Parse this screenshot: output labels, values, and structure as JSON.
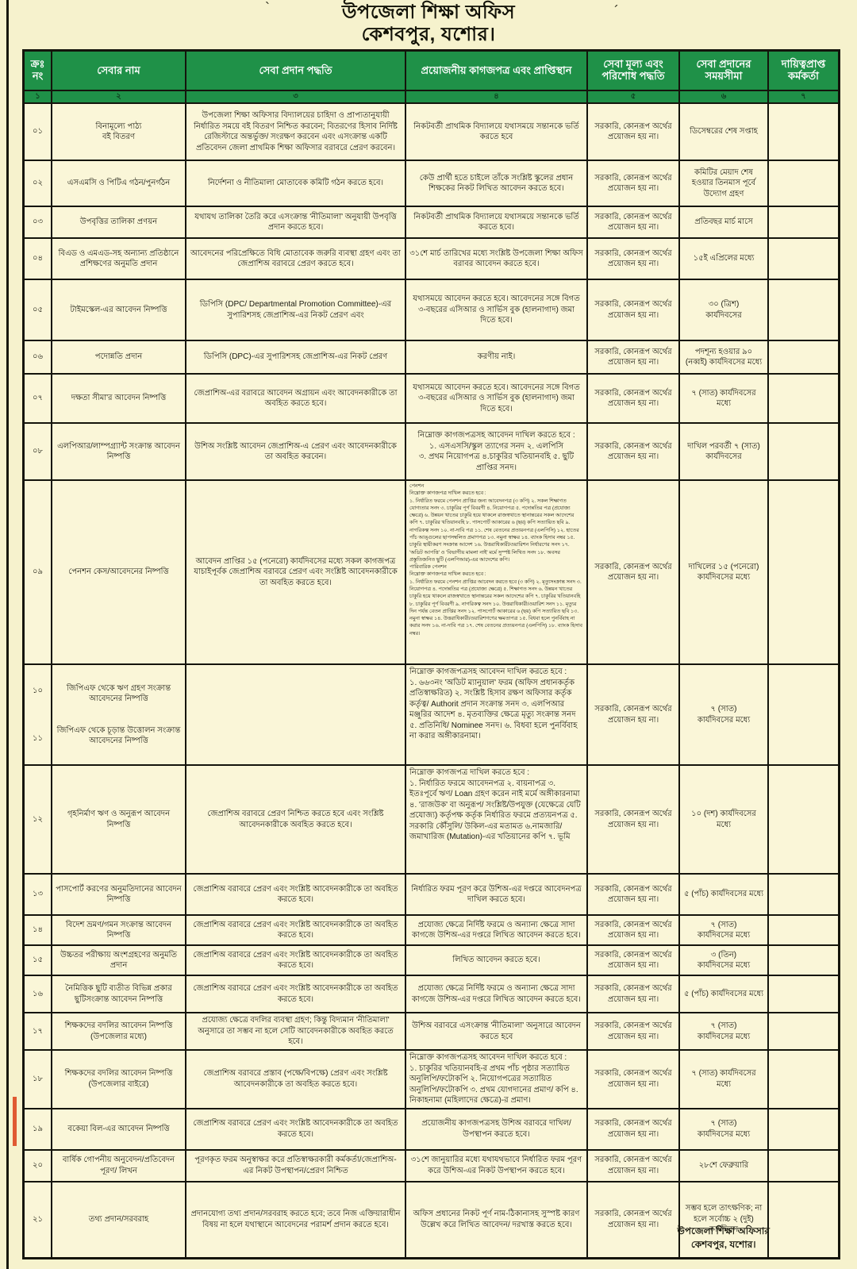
{
  "title": {
    "line1": "উপজেলা শিক্ষা অফিস",
    "line2": "কেশবপুর, যশোর।"
  },
  "decor": {
    "left_tick": "`",
    "right_tick": "´"
  },
  "colors": {
    "header_green": "#1f9148",
    "page_yellow": "#f6f2cd",
    "border_black": "#14140c",
    "accent_red": "#e05a33"
  },
  "footer": {
    "line1": "উপজেলা শিক্ষা অফিসার",
    "line2": "কেশবপুর, যশোর।"
  },
  "table": {
    "headers": [
      "ক্রঃ\nনং",
      "সেবার নাম",
      "সেবা প্রদান পদ্ধতি",
      "প্রয়োজনীয় কাগজপত্র এবং  প্রাপ্তিস্থান",
      "সেবা মূল্য এবং\nপরিশোধ পদ্ধতি",
      "সেবা প্রদানের\nসময়সীমা",
      "দায়িত্বপ্রাপ্ত\nকর্মকর্তা"
    ],
    "column_numbers": [
      "১",
      "২",
      "৩",
      "৪",
      "৫",
      "৬",
      "৭"
    ],
    "rows": [
      {
        "sl": "০১",
        "service": "বিনামূল্যে পাঠ্য\nবই বিতরণ",
        "method": "উপজেলা শিক্ষা অফিসার বিদ্যালয়ের চাহিদা ও প্রাপ্যতানুযায়ী নির্ধারিত সময়ে বই বিতরণ  নিশ্চিত করবেন; বিতরণের হিসাব নির্দিষ্ট রেজিস্টারে অন্তর্ভুক্ত/ সংরক্ষণ করবেন এবং এসংক্রান্ত একটি প্রতিবেদন জেলা প্রাথমিক শিক্ষা অফিসার বরাবরে প্রেরণ করবেন।",
        "documents": "নিকটবর্তী প্রাথমিক বিদ্যালয়ে যথাসময়ে সন্তানকে ভর্তি করতে হবে",
        "fee": "সরকারি, কোনরূপ অর্থের প্রয়োজন হয় না।",
        "time": "ডিসেম্বরের শেষ সপ্তাহ",
        "officer": ""
      },
      {
        "sl": "০২",
        "service": "এসএমসি ও পিটিএ গঠন/পুনর্গঠন",
        "method": "নির্দেশনা ও নীতিমালা মোতাবেক কমিটি গঠন করতে হবে।",
        "documents": "কেউ প্রার্থী হতে চাইলে তাঁকে সংশ্লিষ্ট স্কুলের প্রধান শিক্ষকের নিকট লিখিত আবেদন করতে হবে।",
        "fee": "সরকারি, কোনরূপ অর্থের প্রয়োজন হয় না।",
        "time": "কমিটির মেয়াদ শেষ হওয়ার তিনমাস পূর্বে উদ্যোগ গ্রহণ",
        "officer": ""
      },
      {
        "sl": "০৩",
        "service": "উপবৃত্তির তালিকা প্রণয়ন",
        "method": "যথাযথ তালিকা তৈরি করে এসংক্রান্ত 'নীতিমালা' অনুযায়ী উপবৃত্তি প্রদান করতে হবে।",
        "documents": "নিকটবর্তী প্রাথমিক বিদ্যালয়ে যথাসময়ে সন্তানকে ভর্তি করতে হবে।",
        "fee": "সরকারি, কোনরূপ অর্থের প্রয়োজন হয় না।",
        "time": "প্রতিবছর মার্চ মাসে",
        "officer": ""
      },
      {
        "sl": "০৪",
        "service": "বিএড ও এমএড-সহ অন্যান্য প্রতিষ্ঠানে প্রশিক্ষণের অনুমতি প্রদান",
        "method": "আবেদনের পরিপ্রেক্ষিতে বিধি মোতাবেক জরুরি ব্যবস্থা গ্রহণ এবং তা জেপ্রাশিঅ বরাবরে প্রেরণ করতে হবে।",
        "documents": "৩১শে মার্চ তারিখের মধ্যে সংশ্লিষ্ট উপজেলা শিক্ষা অফিস বরাবর আবেদন করতে হবে।",
        "fee": "সরকারি, কোনরূপ অর্থের প্রয়োজন হয় না।",
        "time": "১৫ই এপ্রিলের মধ্যে",
        "officer": ""
      },
      {
        "sl": "০৫",
        "service": "টাইমস্কেল-এর আবেদন নিষ্পত্তি",
        "method": "ডিপিসি (DPC/ Departmental Promotion Committee)-এর সুপারিশসহ জেপ্রাশিঅ-এর নিকট প্রেরণ এবং",
        "documents": "যথাসময়ে আবেদন করতে হবে। আবেদনের সঙ্গে বিগত ৩-বছরের এসিআর ও সার্ভিস বুক (হালনাগাদ) জমা দিতে হবে।",
        "fee": "সরকারি, কোনরূপ অর্থের প্রয়োজন হয় না।",
        "time": "৩০ (ত্রিশ)\nকার্যদিবসের",
        "officer": ""
      },
      {
        "sl": "০৬",
        "service": "পদোন্নতি প্রদান",
        "method": "ডিপিসি (DPC)-এর সুপারিশসহ জেপ্রাশিঅ-এর নিকট প্রেরণ",
        "documents": "করণীয় নাই।",
        "fee": "সরকারি, কোনরূপ অর্থের প্রয়োজন হয় না।",
        "time": "পদশূন্য হওয়ার ৯০ (নব্বই) কার্যদিবসের মধ্যে",
        "officer": ""
      },
      {
        "sl": "০৭",
        "service": "দক্ষতা সীমা'র আবেদন নিষ্পত্তি",
        "method": "জেপ্রাশিঅ-এর বরাবরে আবেদন অগ্রায়ন এবং আবেদনকারীকে তা অবহিত করতে হবে।",
        "documents": "যথাসময়ে আবেদন করতে হবে। আবেদনের সঙ্গে বিগত ৩-বছরের এসিআর ও সার্ভিস বুক (হালনাগাদ) জমা দিতে হবে।",
        "fee": "সরকারি, কোনরূপ অর্থের প্রয়োজন হয় না।",
        "time": "৭ (সাত) কার্যদিবসের মধ্যে",
        "officer": ""
      },
      {
        "sl": "০৮",
        "service": "এলপিআর/লাম্পগ্র্যান্ট সংক্রান্ত আবেদন নিষ্পত্তি",
        "method": "উশিঅ সংশ্লিষ্ট আবেদন জেপ্রাশিঅ-এ প্রেরণ এবং আবেদনকারীকে তা অবহিত করবেন।",
        "documents": "নিম্নোক্ত কাগজপত্রসহ আবেদন দাখিল করতে হবে :\n১. এসএসসি/স্কুল ত্যাগের সনদ ২. এলপিসি\n৩. প্রথম নিয়োগপত্র ৪.চাকুরির খতিয়ানবহি ৫. ছুটি প্রাপ্তির সনদ।",
        "fee": "সরকারি, কোনরূপ অর্থের প্রয়োজন হয় না।",
        "time": "দাখিল পরবর্তী ৭ (সাত) কার্যদিবসের",
        "officer": ""
      },
      {
        "sl": "০৯",
        "service": "পেনশন কেস/আবেদনের নিষ্পত্তি",
        "method": "আবেদন প্রাপ্তির ১৫ (পনেরো) কার্যদিবসের মধ্যে সকল কাগজপত্র যাচাইপূর্বক জেপ্রাশিঅ বরাবরে প্রেরণ এবং সংশ্লিষ্ট আবেদনকারীকে তা অবহিত করতে হবে।",
        "documents": "পেনশন\nনিম্নোক্ত কাগজপত্র দাখিল করতে হবে :\n১. নির্ধারিত ফরমে পেনশন প্রাপ্তির জন্য আবেদনপত্র (৩ কপি) ২. সকল শিক্ষাগত যোগ্যতার সনদ ৩. চাকুরির পূর্ণ বিবরণী ৪. নিয়োগপত্র ৫. পদোন্নতির পত্র (প্রযোজ্য ক্ষেত্রে) ৬. উন্নয়ন খাতের চাকুরি হয়ে থাকলে রাজস্বখাতে স্থানান্তরের সকল আদেশের কপি ৭. চাকুরির খতিয়ানবহি ৮. পাসপোর্ট আকারের ৬ (ছয়) কপি সত্যায়িত ছবি ৯. নাগরিকত্ব সনদ ১০. না-দাবি পত্র ১১. শেষ বেতনের প্রত্যয়নপত্র (এলপিসি) ১২. হাতের পাঁচ আঙ্গুলের ছাপসম্বলিত প্রমাণপত্র ১৩. নমুনা স্বাক্ষর ১৪. ব্যাংক হিসাব নম্বর ১৫. চাকুরি স্থায়ীকরণ সংক্রান্ত আদেশ ১৬. উত্তরাধিকারী/ওয়ারিশন নির্ধারণের সনদ ১৭. 'অডিট আপত্তি' ও 'বিভাগীয় মামলা নাই' মর্মে সুস্পষ্ট লিখিত সনদ ১৮. অবসর প্রস্তুতিজনিত ছুটি (এলপিআর)-এর আদেশের কপি।\nপারিবারিক পেনশন\nনিম্নোক্ত কাগজপত্র দাখিল করতে হবে :\n১. নির্ধারিত ফরমে পেনশন প্রাপ্তির আবেদন করতে হবে (৩ কপি) ২. মৃত্যুসংক্রান্ত সনদ ৩. নিয়োগপত্র ৪. পদোন্নতির পত্র (প্রযোজ্য ক্ষেত্রে) ৫. শিক্ষাগত সনদ ৬. উন্নয়ন খাতের চাকুরি হয়ে থাকলে রাজস্বখাতে স্থানান্তরের সকল আদেশের কপি ৭. চাকুরির খতিয়ানবহি ৮. চাকুরির পূর্ণ বিবরণী ৯. নাগরিকত্ব সনদ ১০. উত্তরাধিকারী/ওয়ারিশ সনদ ১১. মৃত্যুর দিন পর্যন্ত বেতন প্রাপ্তির সনদ ১২. পাসপোর্ট আকারের ৬ (ছয়) কপি সত্যায়িত ছবি ১৩. নমুনা স্বাক্ষর ১৪. উত্তরাধিকারী/ওয়ারিশগণের ক্ষমতাপত্র ১৫. বিধবা হলে পুনর্বিবাহ না করার সনদ ১৬. না-দাবি পত্র ১৭. শেষ বেতনের প্রত্যয়নপত্র (এলপিসি) ১৮. ব্যাংক হিসাব নম্বর।",
        "fee": "সরকারি, কোনরূপ অর্থের প্রয়োজন হয় না।",
        "time": "দাখিলের ১৫ (পনেরো) কার্যদিবসের মধ্যে",
        "officer": ""
      },
      {
        "sl": "১০",
        "sl2": "১১",
        "service": "জিপিএফ থেকে ঋণ গ্রহণ সংক্রান্ত আবেদনের নিষ্পত্তি",
        "service2": "জিপিএফ থেকে চূড়ান্ত উত্তোলন সংক্রান্ত আবেদনের নিষ্পত্তি",
        "method": "",
        "documents": "নিম্নোক্ত কাগজপত্রসহ আবেদন দাখিল করতে হবে :\n১. ৬৬৩নং 'অডিট ম্যানুয়াল' ফরম (অফিস প্রধানকর্তৃক প্রতিস্বাক্ষরিত) ২. সংশ্লিষ্ট হিসাব রক্ষণ অফিসার কর্তৃক কর্তৃত্ব/ Authorit প্রদান সংক্রান্ত সনদ ৩. এলপিআর মঞ্জুরির আদেশ ৪. মৃতব্যক্তির ক্ষেত্রে মৃত্যু সংক্রান্ত সনদ ৫. প্রতিনিধি/ Nominee সনদ। ৬. বিধবা হলে পুনর্বিবাহ না করার অঙ্গীকারনামা।",
        "fee": "সরকারি, কোনরূপ অর্থের প্রয়োজন হয় না।",
        "time": "৭ (সাত)\nকার্যদিবসের মধ্যে",
        "officer": ""
      },
      {
        "sl": "১২",
        "service": "গৃহনির্মাণ ঋণ ও অনুরূপ আবেদন নিষ্পত্তি",
        "method": "জেপ্রাশিঅ বরাবরে প্রেরণ নিশ্চিত করতে হবে এবং সংশ্লিষ্ট আবেদনকারীকে অবহিত করতে হবে।",
        "documents": "নিম্নোক্ত কাগজপত্র দাখিল করতে হবে :\n১. নির্ধারিত ফরমে আবেদনপত্র ২. বায়নাপত্র ৩. ইতঃপূর্বে ঋণ/ Loan গ্রহণ করেন নাই মর্মে অঙ্গীকারনামা ৪. 'রাজউক' বা অনুরূপ/ সংশ্লিষ্ট/উপযুক্ত (যেক্ষেত্রে যেটি প্রযোজ্য) কর্তৃপক্ষ কর্তৃক নির্ধারিত ফরমে প্রত্যয়নপত্র ৫. সরকারি কৌঁসুলি/ উকিল-এর মতামত ৬.নামজারি/জমাখারিজ (Mutation)-এর খতিয়ানের কপি ৭. ভূমি",
        "fee": "সরকারি, কোনরূপ অর্থের প্রয়োজন হয় না।",
        "time": "১০ (দশ) কার্যদিবসের মধ্যে",
        "officer": ""
      },
      {
        "sl": "১৩",
        "service": "পাসপোর্ট করণের অনুমতিদানের আবেদন নিষ্পত্তি",
        "method": "জেপ্রাশিঅ বরাবরে প্রেরণ এবং সংশ্লিষ্ট আবেদনকারীকে তা অবহিত করতে হবে।",
        "documents": "নির্ধারিত ফরম পূরণ করে উশিঅ-এর দপ্তরে আবেদনপত্র দাখিল করতে হবে।",
        "fee": "সরকারি, কোনরূপ অর্থের প্রয়োজন হয় না।",
        "time": "৫ (পাঁচ) কার্যদিবসের মধ্যে",
        "officer": ""
      },
      {
        "sl": "১৪",
        "service": "বিদেশ ভ্রমণ/গমন সংক্রান্ত আবেদন নিষ্পত্তি",
        "method": "জেপ্রাশিঅ বরাবরে প্রেরণ এবং সংশ্লিষ্ট আবেদনকারীকে তা অবহিত করতে হবে।",
        "documents": "প্রযোজ্য ক্ষেত্রে নির্দিষ্ট ফরমে ও অন্যান্য ক্ষেত্রে সাদা কাগজে উশিঅ-এর দপ্তরে লিখিত আবেদন করতে হবে।",
        "fee": "সরকারি, কোনরূপ অর্থের প্রয়োজন হয় না।",
        "time": "৭ (সাত)\nকার্যদিবসের মধ্যে",
        "officer": ""
      },
      {
        "sl": "১৫",
        "service": "উচ্চতর পরীক্ষায় অংশগ্রহণের অনুমতি প্রদান",
        "method": "জেপ্রাশিঅ বরাবরে প্রেরণ এবং সংশ্লিষ্ট আবেদনকারীকে তা অবহিত করতে হবে।",
        "documents": "লিখিত আবেদন করতে হবে।",
        "fee": "সরকারি, কোনরূপ অর্থের প্রয়োজন হয় না।",
        "time": "৩ (তিন)\nকার্যদিবসের মধ্যে",
        "officer": ""
      },
      {
        "sl": "১৬",
        "service": "নৈমিত্তিক ছুটি ব্যতীত বিভিন্ন প্রকার ছুটিসংক্রান্ত আবেদন নিষ্পত্তি",
        "method": "জেপ্রাশিঅ বরাবরে প্রেরণ এবং সংশ্লিষ্ট আবেদনকারীকে তা অবহিত করতে হবে।",
        "documents": "প্রযোজ্য ক্ষেত্রে নির্দিষ্ট ফরমে ও অন্যান্য ক্ষেত্রে সাদা কাগজে উশিঅ-এর দপ্তরে লিখিত আবেদন করতে হবে।",
        "fee": "সরকারি, কোনরূপ অর্থের প্রয়োজন হয় না।",
        "time": "৫ (পাঁচ) কার্যদিবসের মধ্যে",
        "officer": ""
      },
      {
        "sl": "১৭",
        "service": "শিক্ষকদের বদলির আবেদন নিষ্পত্তি (উপজেলার মধ্যে)",
        "method": "প্রযোজ্য ক্ষেত্রে বদলির ব্যবস্থা গ্রহণ; কিন্তু বিদ্যমান 'নীতিমালা' অনুসারে তা সম্ভব না হলে সেটি আবেদনকারীকে অবহিত করতে হবে।",
        "documents": "উশিঅ বরাবরে এসংক্রান্ত 'নীতিমালা' অনুসারে আবেদন করতে হবে",
        "fee": "সরকারি, কোনরূপ অর্থের প্রয়োজন হয় না।",
        "time": "৭ (সাত)\nকার্যদিবসের মধ্যে",
        "officer": ""
      },
      {
        "sl": "১৮",
        "service": "শিক্ষকদের বদলির আবেদন নিষ্পত্তি (উপজেলার বাইরে)",
        "method": "জেপ্রাশিঅ বরাবরে প্রস্তাব (পক্ষে/বিপক্ষে) প্রেরণ এবং সংশ্লিষ্ট আবেদনকারীকে তা অবহিত করতে হবে।",
        "documents": "নিম্নোক্ত কাগজপত্রসহ আবেদন দাখিল করতে হবে :\n১. চাকুরির খতিয়ানবহি-র প্রথম পাঁচ পৃষ্ঠার সত্যায়িত অনুলিপি/ফটোকপি ২. নিয়োগপত্রের সত্যায়িত অনুলিপি/ফটোকপি ৩. প্রথম যোগদানের প্রমাণ/ কপি ৪. নিকাহনামা (মহিলাদের ক্ষেত্রে)-র প্রমাণ।",
        "fee": "সরকারি, কোনরূপ অর্থের প্রয়োজন হয় না।",
        "time": "৭ (সাত) কার্যদিবসের মধ্যে",
        "officer": ""
      },
      {
        "sl": "১৯",
        "service": "বকেয়া বিল-এর আবেদন নিষ্পত্তি",
        "method": "জেপ্রাশিঅ বরাবরে প্রেরণ এবং সংশ্লিষ্ট আবেদনকারীকে তা অবহিত করতে হবে।",
        "documents": "প্রয়োজনীয় কাগজপত্রসহ উশিঅ বরাবরে দাখিল/ উপস্থাপন করতে হবে।",
        "fee": "সরকারি, কোনরূপ অর্থের প্রয়োজন হয় না।",
        "time": "৭ (সাত)\nকার্যদিবসের মধ্যে",
        "officer": ""
      },
      {
        "sl": "২০",
        "service": "বার্ষিক গোপনীয় অনুবেদন/প্রতিবেদন পূরণ/ লিখন",
        "method": "পূরণকৃত ফরম অনুস্বাক্ষর করে প্রতিস্বাক্ষরকারী কর্মকর্তা/জেপ্রাশিঅ-এর নিকট উপস্থাপন/প্রেরণ নিশ্চিত",
        "documents": "৩১শে জানুয়ারির মধ্যে যথাযথভাবে নির্ধারিত ফরম পূরণ করে উশিঅ-এর নিকট উপস্থাপন করতে হবে।",
        "fee": "সরকারি, কোনরূপ অর্থের প্রয়োজন হয় না।",
        "time": "২৮শে ফেব্রুয়ারি",
        "officer": ""
      },
      {
        "sl": "২১",
        "service": "তথ্য প্রদান/সরবরাহ",
        "method": "প্রদানযোগ্য তথ্য প্রদান/সরবরাহ করতে হবে; তবে নিজ এক্তিয়ারাধীন বিষয় না হলে যথাস্থানে আবেদনের পরামর্শ প্রদান করতে হবে।",
        "documents": "অফিস প্রধানের নিকট পূর্ণ নাম-ঠিকানাসহ সুস্পষ্ট কারণ উল্লেখ করে লিখিত আবেদন/ দরখাস্ত করতে হবে।",
        "fee": "সরকারি, কোনরূপ অর্থের প্রয়োজন হয় না।",
        "time": "সম্ভব হলে তাৎক্ষণিক; না হলে সর্বোচ্চ ২ (দুই) কার্যদিবস",
        "officer": ""
      }
    ]
  }
}
